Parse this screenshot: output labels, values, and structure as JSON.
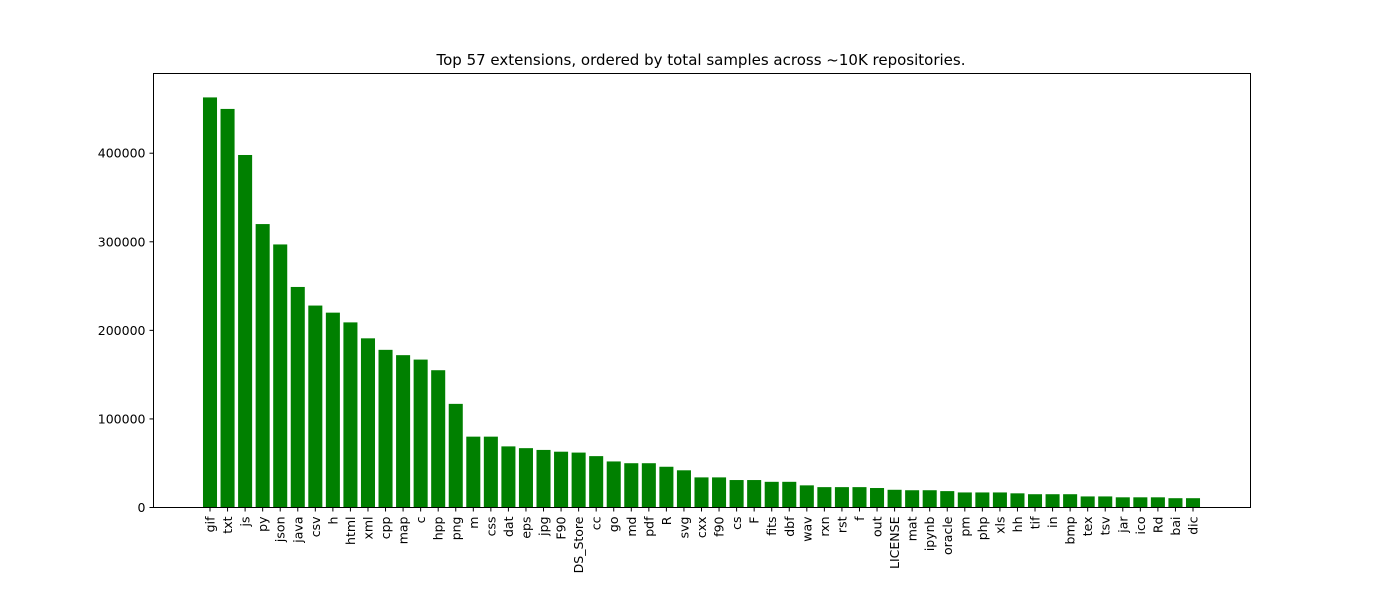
{
  "chart_data": {
    "type": "bar",
    "title": "Top 57 extensions, ordered by total samples across ~10K repositories.",
    "xlabel": "",
    "ylabel": "",
    "ylim": [
      0,
      490000
    ],
    "yticks": [
      0,
      100000,
      200000,
      300000,
      400000
    ],
    "bar_color": "#008000",
    "categories": [
      "gif",
      "txt",
      "js",
      "py",
      "json",
      "java",
      "csv",
      "h",
      "html",
      "xml",
      "cpp",
      "map",
      "c",
      "hpp",
      "png",
      "m",
      "css",
      "dat",
      "eps",
      "jpg",
      "F90",
      "DS_Store",
      "cc",
      "go",
      "md",
      "pdf",
      "R",
      "svg",
      "cxx",
      "f90",
      "cs",
      "F",
      "fits",
      "dbf",
      "wav",
      "rxn",
      "rst",
      "f",
      "out",
      "LICENSE",
      "mat",
      "ipynb",
      "oracle",
      "pm",
      "php",
      "xls",
      "hh",
      "tif",
      "in",
      "bmp",
      "tex",
      "tsv",
      "jar",
      "ico",
      "Rd",
      "bai",
      "dic"
    ],
    "values": [
      463000,
      450000,
      398000,
      320000,
      297000,
      249000,
      228000,
      220000,
      209000,
      191000,
      178000,
      172000,
      167000,
      155000,
      117000,
      80000,
      80000,
      69000,
      67000,
      65000,
      63000,
      62000,
      58000,
      52000,
      50000,
      50000,
      46000,
      42000,
      34000,
      34000,
      31000,
      31000,
      29000,
      29000,
      25000,
      23000,
      23000,
      23000,
      22000,
      20000,
      19500,
      19500,
      18500,
      17000,
      17000,
      17000,
      16000,
      15000,
      15000,
      15000,
      12500,
      12500,
      11500,
      11500,
      11500,
      10500,
      10500
    ]
  }
}
